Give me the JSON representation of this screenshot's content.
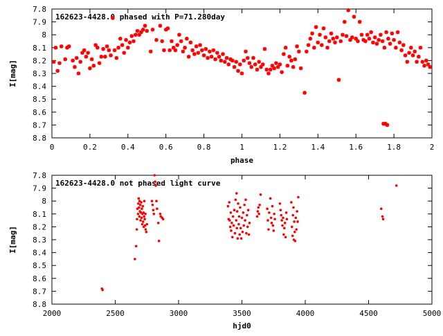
{
  "chart_data": [
    {
      "type": "scatter",
      "title": "162623-4428.0 phased with P=71.280day",
      "xlabel": "phase",
      "ylabel": "I[mag]",
      "xlim": [
        0,
        2
      ],
      "ylim": [
        8.8,
        7.8
      ],
      "y_reversed": true,
      "xticks": [
        0,
        0.2,
        0.4,
        0.6,
        0.8,
        1,
        1.2,
        1.4,
        1.6,
        1.8,
        2
      ],
      "xtick_labels": [
        "0",
        "0.2",
        "0.4",
        "0.6",
        "0.8",
        "1",
        "1.2",
        "1.4",
        "1.6",
        "1.8",
        "2"
      ],
      "yticks": [
        7.8,
        7.9,
        8.0,
        8.1,
        8.2,
        8.3,
        8.4,
        8.5,
        8.6,
        8.7,
        8.8
      ],
      "ytick_labels": [
        "7.8",
        "7.9",
        "8",
        "8.1",
        "8.2",
        "8.3",
        "8.4",
        "8.5",
        "8.6",
        "8.7",
        "8.8"
      ],
      "grid": false,
      "marker_color": "#ff0000",
      "points": [
        [
          0.01,
          8.21
        ],
        [
          0.02,
          8.1
        ],
        [
          0.03,
          8.28
        ],
        [
          0.04,
          8.22
        ],
        [
          0.05,
          8.09
        ],
        [
          0.07,
          8.19
        ],
        [
          0.08,
          8.1
        ],
        [
          0.09,
          8.09
        ],
        [
          0.11,
          8.2
        ],
        [
          0.12,
          8.25
        ],
        [
          0.13,
          8.18
        ],
        [
          0.14,
          8.3
        ],
        [
          0.15,
          8.21
        ],
        [
          0.16,
          8.14
        ],
        [
          0.17,
          8.12
        ],
        [
          0.18,
          8.17
        ],
        [
          0.19,
          8.14
        ],
        [
          0.2,
          8.26
        ],
        [
          0.21,
          8.19
        ],
        [
          0.22,
          8.24
        ],
        [
          0.23,
          8.08
        ],
        [
          0.24,
          8.1
        ],
        [
          0.25,
          8.22
        ],
        [
          0.26,
          8.17
        ],
        [
          0.27,
          8.11
        ],
        [
          0.28,
          8.17
        ],
        [
          0.29,
          8.09
        ],
        [
          0.3,
          8.12
        ],
        [
          0.31,
          8.16
        ],
        [
          0.32,
          7.87
        ],
        [
          0.33,
          8.12
        ],
        [
          0.34,
          8.18
        ],
        [
          0.35,
          8.1
        ],
        [
          0.36,
          8.03
        ],
        [
          0.37,
          8.08
        ],
        [
          0.38,
          8.14
        ],
        [
          0.39,
          8.04
        ],
        [
          0.4,
          8.1
        ],
        [
          0.41,
          8.06
        ],
        [
          0.42,
          8.01
        ],
        [
          0.43,
          8.05
        ],
        [
          0.44,
          8.0
        ],
        [
          0.45,
          7.97
        ],
        [
          0.46,
          8.0
        ],
        [
          0.47,
          7.98
        ],
        [
          0.48,
          7.96
        ],
        [
          0.49,
          7.93
        ],
        [
          0.5,
          7.97
        ],
        [
          0.52,
          8.13
        ],
        [
          0.53,
          7.96
        ],
        [
          0.55,
          8.04
        ],
        [
          0.57,
          7.93
        ],
        [
          0.58,
          8.05
        ],
        [
          0.59,
          8.12
        ],
        [
          0.6,
          7.96
        ],
        [
          0.61,
          7.95
        ],
        [
          0.62,
          8.12
        ],
        [
          0.63,
          8.05
        ],
        [
          0.64,
          8.1
        ],
        [
          0.65,
          8.12
        ],
        [
          0.66,
          8.08
        ],
        [
          0.67,
          8.0
        ],
        [
          0.68,
          8.05
        ],
        [
          0.69,
          8.13
        ],
        [
          0.7,
          8.1
        ],
        [
          0.71,
          8.03
        ],
        [
          0.72,
          8.17
        ],
        [
          0.73,
          8.06
        ],
        [
          0.74,
          8.12
        ],
        [
          0.75,
          8.15
        ],
        [
          0.76,
          8.09
        ],
        [
          0.77,
          8.14
        ],
        [
          0.78,
          8.08
        ],
        [
          0.79,
          8.12
        ],
        [
          0.8,
          8.16
        ],
        [
          0.81,
          8.11
        ],
        [
          0.82,
          8.18
        ],
        [
          0.83,
          8.13
        ],
        [
          0.84,
          8.17
        ],
        [
          0.85,
          8.12
        ],
        [
          0.86,
          8.19
        ],
        [
          0.87,
          8.14
        ],
        [
          0.88,
          8.17
        ],
        [
          0.89,
          8.2
        ],
        [
          0.9,
          8.15
        ],
        [
          0.91,
          8.21
        ],
        [
          0.92,
          8.18
        ],
        [
          0.93,
          8.23
        ],
        [
          0.94,
          8.19
        ],
        [
          0.95,
          8.2
        ],
        [
          0.96,
          8.25
        ],
        [
          0.97,
          8.21
        ],
        [
          0.98,
          8.28
        ],
        [
          0.99,
          8.23
        ],
        [
          1.0,
          8.3
        ],
        [
          1.01,
          8.2
        ],
        [
          1.02,
          8.13
        ],
        [
          1.03,
          8.18
        ],
        [
          1.04,
          8.22
        ],
        [
          1.05,
          8.25
        ],
        [
          1.06,
          8.18
        ],
        [
          1.07,
          8.23
        ],
        [
          1.08,
          8.27
        ],
        [
          1.09,
          8.21
        ],
        [
          1.1,
          8.25
        ],
        [
          1.11,
          8.23
        ],
        [
          1.12,
          8.11
        ],
        [
          1.13,
          8.27
        ],
        [
          1.14,
          8.3
        ],
        [
          1.15,
          8.27
        ],
        [
          1.16,
          8.24
        ],
        [
          1.17,
          8.26
        ],
        [
          1.18,
          8.22
        ],
        [
          1.19,
          8.25
        ],
        [
          1.2,
          8.23
        ],
        [
          1.21,
          8.29
        ],
        [
          1.22,
          8.15
        ],
        [
          1.23,
          8.1
        ],
        [
          1.24,
          8.24
        ],
        [
          1.25,
          8.17
        ],
        [
          1.26,
          8.2
        ],
        [
          1.27,
          8.25
        ],
        [
          1.28,
          8.19
        ],
        [
          1.29,
          8.09
        ],
        [
          1.3,
          8.13
        ],
        [
          1.31,
          8.26
        ],
        [
          1.33,
          8.45
        ],
        [
          1.34,
          8.13
        ],
        [
          1.35,
          8.08
        ],
        [
          1.36,
          8.03
        ],
        [
          1.37,
          7.99
        ],
        [
          1.38,
          8.1
        ],
        [
          1.39,
          7.94
        ],
        [
          1.4,
          8.06
        ],
        [
          1.41,
          8.0
        ],
        [
          1.42,
          8.08
        ],
        [
          1.43,
          7.95
        ],
        [
          1.44,
          8.02
        ],
        [
          1.45,
          8.1
        ],
        [
          1.46,
          8.05
        ],
        [
          1.47,
          7.99
        ],
        [
          1.48,
          8.03
        ],
        [
          1.49,
          8.06
        ],
        [
          1.5,
          8.02
        ],
        [
          1.51,
          8.35
        ],
        [
          1.52,
          8.05
        ],
        [
          1.53,
          8.0
        ],
        [
          1.54,
          7.9
        ],
        [
          1.55,
          8.01
        ],
        [
          1.56,
          7.81
        ],
        [
          1.57,
          8.04
        ],
        [
          1.58,
          8.02
        ],
        [
          1.59,
          7.86
        ],
        [
          1.6,
          8.03
        ],
        [
          1.61,
          8.05
        ],
        [
          1.62,
          7.9
        ],
        [
          1.63,
          8.0
        ],
        [
          1.64,
          8.04
        ],
        [
          1.65,
          8.05
        ],
        [
          1.66,
          8.0
        ],
        [
          1.67,
          8.03
        ],
        [
          1.68,
          7.98
        ],
        [
          1.69,
          8.06
        ],
        [
          1.7,
          8.02
        ],
        [
          1.71,
          8.07
        ],
        [
          1.72,
          8.04
        ],
        [
          1.73,
          8.0
        ],
        [
          1.74,
          8.05
        ],
        [
          1.745,
          8.69
        ],
        [
          1.755,
          8.69
        ],
        [
          1.765,
          8.7
        ],
        [
          1.75,
          8.1
        ],
        [
          1.76,
          7.98
        ],
        [
          1.77,
          8.03
        ],
        [
          1.78,
          8.07
        ],
        [
          1.79,
          7.99
        ],
        [
          1.8,
          8.04
        ],
        [
          1.81,
          8.1
        ],
        [
          1.82,
          7.98
        ],
        [
          1.83,
          8.06
        ],
        [
          1.84,
          8.12
        ],
        [
          1.85,
          8.08
        ],
        [
          1.86,
          8.16
        ],
        [
          1.87,
          8.21
        ],
        [
          1.88,
          8.14
        ],
        [
          1.89,
          8.1
        ],
        [
          1.9,
          8.16
        ],
        [
          1.91,
          8.13
        ],
        [
          1.92,
          8.21
        ],
        [
          1.93,
          8.17
        ],
        [
          1.94,
          8.1
        ],
        [
          1.95,
          8.21
        ],
        [
          1.96,
          8.24
        ],
        [
          1.97,
          8.2
        ],
        [
          1.98,
          8.23
        ],
        [
          1.99,
          8.25
        ]
      ]
    },
    {
      "type": "scatter",
      "title": "162623-4428.0 not phased light curve",
      "xlabel": "hjd0",
      "ylabel": "I[mag]",
      "xlim": [
        2000,
        5000
      ],
      "ylim": [
        8.8,
        7.8
      ],
      "y_reversed": true,
      "xticks": [
        2000,
        2500,
        3000,
        3500,
        4000,
        4500,
        5000
      ],
      "xtick_labels": [
        "2000",
        "2500",
        "3000",
        "3500",
        "4000",
        "4500",
        "5000"
      ],
      "yticks": [
        7.8,
        7.9,
        8.0,
        8.1,
        8.2,
        8.3,
        8.4,
        8.5,
        8.6,
        8.7,
        8.8
      ],
      "ytick_labels": [
        "7.8",
        "7.9",
        "8",
        "8.1",
        "8.2",
        "8.3",
        "8.4",
        "8.5",
        "8.6",
        "8.7",
        "8.8"
      ],
      "grid": false,
      "marker_color": "#ff0000",
      "points": [
        [
          2395,
          8.68
        ],
        [
          2400,
          8.69
        ],
        [
          2655,
          8.45
        ],
        [
          2665,
          8.35
        ],
        [
          2670,
          8.22
        ],
        [
          2672,
          8.14
        ],
        [
          2675,
          8.06
        ],
        [
          2680,
          8.1
        ],
        [
          2682,
          8.02
        ],
        [
          2685,
          7.98
        ],
        [
          2688,
          8.05
        ],
        [
          2690,
          8.12
        ],
        [
          2692,
          8.0
        ],
        [
          2695,
          8.08
        ],
        [
          2698,
          8.03
        ],
        [
          2700,
          8.15
        ],
        [
          2703,
          8.09
        ],
        [
          2705,
          8.01
        ],
        [
          2708,
          8.13
        ],
        [
          2710,
          8.06
        ],
        [
          2713,
          8.18
        ],
        [
          2715,
          8.1
        ],
        [
          2718,
          8.04
        ],
        [
          2720,
          8.16
        ],
        [
          2723,
          8.09
        ],
        [
          2725,
          8.2
        ],
        [
          2728,
          8.12
        ],
        [
          2730,
          8.0
        ],
        [
          2733,
          8.14
        ],
        [
          2735,
          8.19
        ],
        [
          2738,
          8.1
        ],
        [
          2740,
          8.22
        ],
        [
          2745,
          8.24
        ],
        [
          2750,
          8.18
        ],
        [
          2790,
          8.0
        ],
        [
          2795,
          8.03
        ],
        [
          2800,
          8.07
        ],
        [
          2805,
          8.1
        ],
        [
          2810,
          7.8
        ],
        [
          2815,
          7.85
        ],
        [
          2820,
          7.88
        ],
        [
          2825,
          8.0
        ],
        [
          2830,
          8.06
        ],
        [
          2840,
          8.17
        ],
        [
          2845,
          8.31
        ],
        [
          2855,
          8.1
        ],
        [
          2860,
          8.12
        ],
        [
          2870,
          8.13
        ],
        [
          2878,
          8.14
        ],
        [
          3390,
          8.04
        ],
        [
          3395,
          8.14
        ],
        [
          3400,
          8.01
        ],
        [
          3403,
          8.15
        ],
        [
          3408,
          8.2
        ],
        [
          3412,
          8.09
        ],
        [
          3415,
          8.23
        ],
        [
          3420,
          8.17
        ],
        [
          3425,
          8.28
        ],
        [
          3430,
          8.12
        ],
        [
          3435,
          8.19
        ],
        [
          3440,
          8.07
        ],
        [
          3445,
          8.25
        ],
        [
          3450,
          7.99
        ],
        [
          3455,
          8.15
        ],
        [
          3458,
          7.94
        ],
        [
          3460,
          8.21
        ],
        [
          3463,
          8.08
        ],
        [
          3466,
          8.29
        ],
        [
          3470,
          8.02
        ],
        [
          3475,
          8.18
        ],
        [
          3478,
          8.12
        ],
        [
          3482,
          8.26
        ],
        [
          3486,
          8.05
        ],
        [
          3490,
          8.21
        ],
        [
          3495,
          8.29
        ],
        [
          3500,
          8.13
        ],
        [
          3505,
          8.24
        ],
        [
          3510,
          8.09
        ],
        [
          3515,
          8.19
        ],
        [
          3520,
          8.03
        ],
        [
          3525,
          8.15
        ],
        [
          3530,
          7.99
        ],
        [
          3535,
          8.25
        ],
        [
          3540,
          8.11
        ],
        [
          3545,
          8.2
        ],
        [
          3550,
          8.07
        ],
        [
          3555,
          8.26
        ],
        [
          3560,
          8.17
        ],
        [
          3620,
          8.12
        ],
        [
          3625,
          8.08
        ],
        [
          3630,
          8.05
        ],
        [
          3635,
          8.1
        ],
        [
          3640,
          8.03
        ],
        [
          3648,
          7.95
        ],
        [
          3700,
          8.06
        ],
        [
          3705,
          8.15
        ],
        [
          3710,
          8.22
        ],
        [
          3715,
          8.09
        ],
        [
          3725,
          7.98
        ],
        [
          3730,
          8.13
        ],
        [
          3735,
          8.17
        ],
        [
          3740,
          8.04
        ],
        [
          3745,
          8.19
        ],
        [
          3750,
          8.23
        ],
        [
          3755,
          8.1
        ],
        [
          3760,
          8.14
        ],
        [
          3800,
          8.02
        ],
        [
          3805,
          8.07
        ],
        [
          3810,
          8.11
        ],
        [
          3815,
          8.15
        ],
        [
          3820,
          8.19
        ],
        [
          3825,
          8.13
        ],
        [
          3830,
          8.26
        ],
        [
          3835,
          8.21
        ],
        [
          3840,
          8.17
        ],
        [
          3845,
          8.28
        ],
        [
          3850,
          8.09
        ],
        [
          3855,
          8.14
        ],
        [
          3890,
          8.01
        ],
        [
          3895,
          8.2
        ],
        [
          3900,
          8.27
        ],
        [
          3903,
          8.11
        ],
        [
          3907,
          8.05
        ],
        [
          3910,
          8.3
        ],
        [
          3913,
          8.16
        ],
        [
          3917,
          8.24
        ],
        [
          3920,
          8.31
        ],
        [
          3925,
          8.13
        ],
        [
          3930,
          8.22
        ],
        [
          3935,
          8.08
        ],
        [
          3940,
          8.16
        ],
        [
          3945,
          7.97
        ],
        [
          4600,
          8.06
        ],
        [
          4610,
          8.12
        ],
        [
          4615,
          8.14
        ],
        [
          4720,
          7.88
        ]
      ]
    }
  ]
}
